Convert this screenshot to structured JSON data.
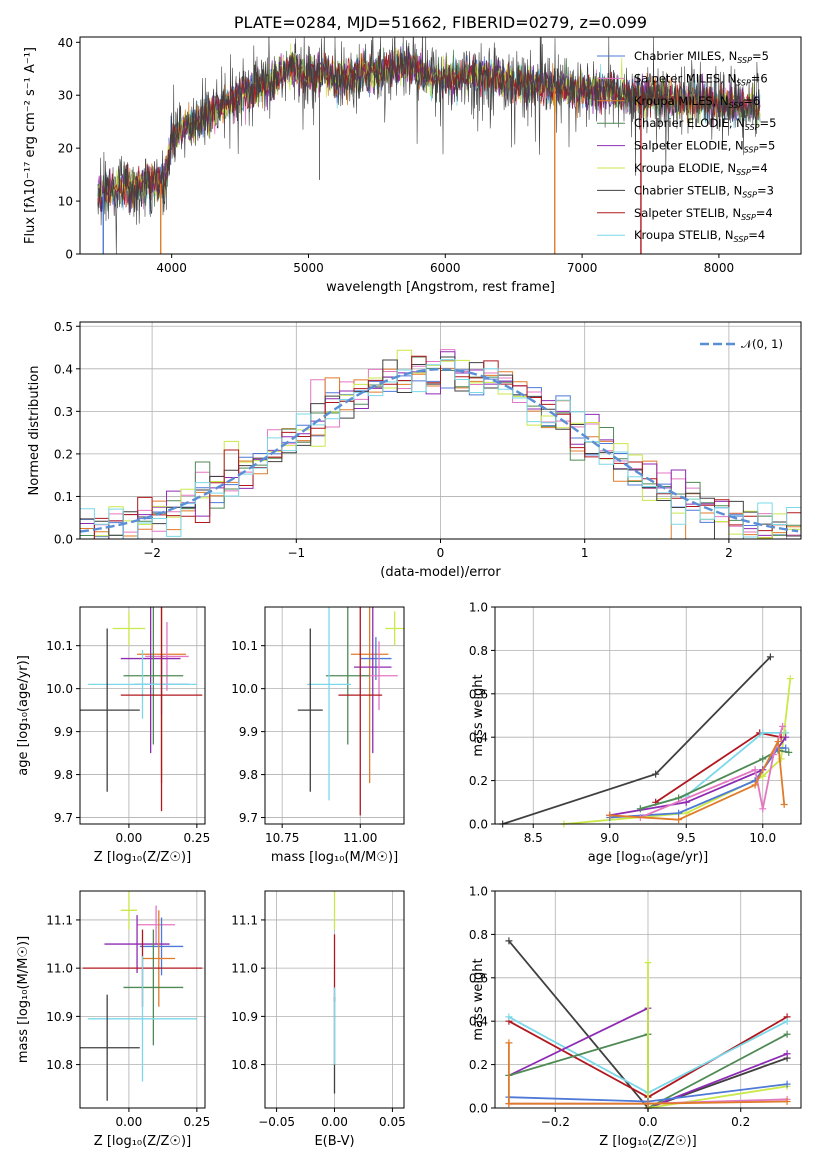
{
  "colors": {
    "chabrier_miles": "#4e79d6",
    "salpeter_miles": "#e377c2",
    "kroupa_miles": "#e07b2a",
    "chabrier_elodie": "#4f8a55",
    "salpeter_elodie": "#8e2bb3",
    "kroupa_elodie": "#c9e84a",
    "chabrier_stelib": "#404040",
    "salpeter_stelib": "#b0181f",
    "kroupa_stelib": "#7ad8e8",
    "normal": "#5a8fd6"
  },
  "chart_data": [
    {
      "id": "spectrum",
      "type": "line",
      "title": "PLATE=0284, MJD=51662, FIBERID=0279, z=0.099",
      "xlabel": "wavelength [Angstrom, rest frame]",
      "ylabel": "Flux [fλ10⁻¹⁷ erg cm⁻² s⁻¹ A⁻¹]",
      "xlim": [
        3330,
        8600
      ],
      "ylim": [
        0,
        41
      ],
      "xticks": [
        4000,
        5000,
        6000,
        7000,
        8000
      ],
      "yticks": [
        0,
        10,
        20,
        30,
        40
      ],
      "legend_position": "right",
      "legend": [
        {
          "key": "chabrier_miles",
          "label": "Chabrier MILES, N",
          "sub": "SSP",
          "suffix": "=5"
        },
        {
          "key": "salpeter_miles",
          "label": "Salpeter MILES, N",
          "sub": "SSP",
          "suffix": "=6"
        },
        {
          "key": "kroupa_miles",
          "label": "Kroupa MILES, N",
          "sub": "SSP",
          "suffix": "=6"
        },
        {
          "key": "chabrier_elodie",
          "label": "Chabrier ELODIE, N",
          "sub": "SSP",
          "suffix": "=5"
        },
        {
          "key": "salpeter_elodie",
          "label": "Salpeter ELODIE, N",
          "sub": "SSP",
          "suffix": "=5"
        },
        {
          "key": "kroupa_elodie",
          "label": "Kroupa ELODIE, N",
          "sub": "SSP",
          "suffix": "=4"
        },
        {
          "key": "chabrier_stelib",
          "label": "Chabrier STELIB, N",
          "sub": "SSP",
          "suffix": "=3"
        },
        {
          "key": "salpeter_stelib",
          "label": "Salpeter STELIB, N",
          "sub": "SSP",
          "suffix": "=4"
        },
        {
          "key": "kroupa_stelib",
          "label": "Kroupa STELIB, N",
          "sub": "SSP",
          "suffix": "=4"
        }
      ],
      "continuum": [
        [
          3450,
          11
        ],
        [
          3550,
          12
        ],
        [
          3650,
          12.5
        ],
        [
          3750,
          13
        ],
        [
          3850,
          14
        ],
        [
          3950,
          13
        ],
        [
          4000,
          22
        ],
        [
          4100,
          24
        ],
        [
          4200,
          25
        ],
        [
          4300,
          27
        ],
        [
          4400,
          28
        ],
        [
          4500,
          30
        ],
        [
          4600,
          31
        ],
        [
          4700,
          32
        ],
        [
          4800,
          34
        ],
        [
          4900,
          35
        ],
        [
          5000,
          33.5
        ],
        [
          5100,
          34.5
        ],
        [
          5200,
          33
        ],
        [
          5300,
          33.5
        ],
        [
          5400,
          34.5
        ],
        [
          5500,
          34
        ],
        [
          5600,
          35
        ],
        [
          5700,
          35.5
        ],
        [
          5800,
          35
        ],
        [
          5900,
          33.5
        ],
        [
          6000,
          33
        ],
        [
          6200,
          34
        ],
        [
          6400,
          33
        ],
        [
          6600,
          32
        ],
        [
          6800,
          31.5
        ],
        [
          7000,
          31
        ],
        [
          7200,
          30.5
        ],
        [
          7400,
          30
        ],
        [
          7600,
          29.5
        ],
        [
          7800,
          29
        ],
        [
          8000,
          28.5
        ],
        [
          8300,
          28
        ]
      ],
      "drops": [
        {
          "key": "chabrier_miles",
          "x": 3500
        },
        {
          "key": "kroupa_miles",
          "x": 3920
        },
        {
          "key": "kroupa_miles",
          "x": 6800
        },
        {
          "key": "salpeter_stelib",
          "x": 7430
        }
      ]
    },
    {
      "id": "residuals",
      "type": "step",
      "xlabel": "(data-model)/error",
      "ylabel": "Normed distribution",
      "xlim": [
        -2.5,
        2.5
      ],
      "ylim": [
        0,
        0.51
      ],
      "xticks": [
        -2,
        -1,
        0,
        1,
        2
      ],
      "yticks": [
        0.0,
        0.1,
        0.2,
        0.3,
        0.4,
        0.5
      ],
      "grid": true,
      "bin_width": 0.1,
      "legend_position": "top-right",
      "legend": [
        {
          "key": "normal",
          "label": "𝒩(0, 1)"
        }
      ],
      "normal": {
        "mu": 0,
        "sigma": 1,
        "style": "dashed"
      },
      "series_keys": [
        "chabrier_miles",
        "salpeter_miles",
        "kroupa_miles",
        "chabrier_elodie",
        "salpeter_elodie",
        "kroupa_elodie",
        "chabrier_stelib",
        "salpeter_stelib",
        "kroupa_stelib"
      ]
    },
    {
      "id": "age_vs_Z",
      "type": "errorbar",
      "xlabel": "Z [log₁₀(Z/Z☉)]",
      "ylabel": "age  [log₁₀(age/yr)]",
      "xlim": [
        -0.18,
        0.28
      ],
      "ylim": [
        9.685,
        10.19
      ],
      "xticks": [
        0.0,
        0.25
      ],
      "yticks": [
        9.7,
        9.8,
        9.9,
        10.0,
        10.1
      ],
      "grid": true,
      "points": [
        {
          "key": "kroupa_elodie",
          "x": 0.0,
          "xerr": 0.06,
          "y": 10.14,
          "yerr": 0.04
        },
        {
          "key": "kroupa_miles",
          "x": 0.12,
          "xerr": 0.09,
          "y": 10.08,
          "yerr": 0.3
        },
        {
          "key": "salpeter_miles",
          "x": 0.14,
          "xerr": 0.08,
          "y": 10.075,
          "yerr": 0.08
        },
        {
          "key": "salpeter_elodie",
          "x": 0.08,
          "xerr": 0.11,
          "y": 10.07,
          "yerr": 0.22
        },
        {
          "key": "chabrier_elodie",
          "x": 0.09,
          "xerr": 0.11,
          "y": 10.03,
          "yerr": 0.16
        },
        {
          "key": "chabrier_miles",
          "x": 0.12,
          "xerr": 0.1,
          "y": 10.01,
          "yerr": 0.07
        },
        {
          "key": "kroupa_stelib",
          "x": 0.05,
          "xerr": 0.2,
          "y": 10.01,
          "yerr": 0.08
        },
        {
          "key": "salpeter_stelib",
          "x": 0.12,
          "xerr": 0.15,
          "y": 9.985,
          "yerr": 0.27
        },
        {
          "key": "chabrier_stelib",
          "x": -0.08,
          "xerr": 0.12,
          "y": 9.95,
          "yerr": 0.19
        }
      ]
    },
    {
      "id": "age_vs_mass",
      "type": "errorbar",
      "xlabel": "mass [log₁₀(M/M☉)]",
      "ylabel": "",
      "xlim": [
        10.695,
        11.14
      ],
      "ylim": [
        9.685,
        10.19
      ],
      "xticks": [
        10.75,
        11.0
      ],
      "yticks": [
        9.7,
        9.8,
        9.9,
        10.0,
        10.1
      ],
      "grid": true,
      "points": [
        {
          "key": "kroupa_elodie",
          "x": 11.11,
          "xerr": 0.03,
          "y": 10.14,
          "yerr": 0.04
        },
        {
          "key": "kroupa_miles",
          "x": 11.03,
          "xerr": 0.06,
          "y": 10.08,
          "yerr": 0.3
        },
        {
          "key": "chabrier_miles",
          "x": 11.05,
          "xerr": 0.05,
          "y": 10.07,
          "yerr": 0.05
        },
        {
          "key": "salpeter_elodie",
          "x": 11.04,
          "xerr": 0.06,
          "y": 10.05,
          "yerr": 0.2
        },
        {
          "key": "salpeter_miles",
          "x": 11.06,
          "xerr": 0.06,
          "y": 10.03,
          "yerr": 0.08
        },
        {
          "key": "chabrier_elodie",
          "x": 10.96,
          "xerr": 0.07,
          "y": 10.03,
          "yerr": 0.16
        },
        {
          "key": "kroupa_stelib",
          "x": 10.9,
          "xerr": 0.07,
          "y": 10.01,
          "yerr": 0.27
        },
        {
          "key": "salpeter_stelib",
          "x": 11.0,
          "xerr": 0.07,
          "y": 9.985,
          "yerr": 0.28
        },
        {
          "key": "chabrier_stelib",
          "x": 10.84,
          "xerr": 0.04,
          "y": 9.95,
          "yerr": 0.19
        }
      ]
    },
    {
      "id": "sfh_age",
      "type": "line",
      "xlabel": "age  [log₁₀(age/yr)]",
      "ylabel": "mass weight",
      "xlim": [
        8.25,
        10.25
      ],
      "ylim": [
        0,
        1
      ],
      "xticks": [
        8.5,
        9.0,
        9.5,
        10.0
      ],
      "yticks": [
        0.0,
        0.2,
        0.4,
        0.6,
        0.8,
        1.0
      ],
      "grid": true,
      "series": [
        {
          "key": "chabrier_stelib",
          "points": [
            [
              8.3,
              0.0
            ],
            [
              9.3,
              0.23
            ],
            [
              10.05,
              0.77
            ]
          ]
        },
        {
          "key": "salpeter_stelib",
          "points": [
            [
              9.3,
              0.1
            ],
            [
              9.98,
              0.42
            ],
            [
              10.12,
              0.4
            ]
          ]
        },
        {
          "key": "kroupa_stelib",
          "points": [
            [
              9.2,
              0.07
            ],
            [
              9.5,
              0.13
            ],
            [
              10.0,
              0.42
            ],
            [
              10.15,
              0.42
            ]
          ]
        },
        {
          "key": "kroupa_elodie",
          "points": [
            [
              8.7,
              0.0
            ],
            [
              9.5,
              0.05
            ],
            [
              10.0,
              0.22
            ],
            [
              10.12,
              0.3
            ],
            [
              10.18,
              0.67
            ]
          ]
        },
        {
          "key": "salpeter_elodie",
          "points": [
            [
              9.0,
              0.04
            ],
            [
              9.5,
              0.1
            ],
            [
              10.0,
              0.25
            ],
            [
              10.15,
              0.4
            ]
          ]
        },
        {
          "key": "chabrier_elodie",
          "points": [
            [
              9.2,
              0.07
            ],
            [
              9.45,
              0.12
            ],
            [
              10.0,
              0.3
            ],
            [
              10.1,
              0.34
            ],
            [
              10.17,
              0.33
            ]
          ]
        },
        {
          "key": "chabrier_miles",
          "points": [
            [
              9.0,
              0.03
            ],
            [
              9.45,
              0.05
            ],
            [
              9.95,
              0.2
            ],
            [
              10.1,
              0.35
            ],
            [
              10.15,
              0.35
            ]
          ]
        },
        {
          "key": "salpeter_miles",
          "points": [
            [
              9.2,
              0.03
            ],
            [
              9.95,
              0.25
            ],
            [
              10.0,
              0.07
            ],
            [
              10.07,
              0.32
            ],
            [
              10.13,
              0.45
            ]
          ]
        },
        {
          "key": "kroupa_miles",
          "points": [
            [
              9.0,
              0.04
            ],
            [
              9.45,
              0.02
            ],
            [
              9.95,
              0.18
            ],
            [
              10.1,
              0.38
            ],
            [
              10.14,
              0.09
            ]
          ]
        }
      ]
    },
    {
      "id": "mass_vs_Z",
      "type": "errorbar",
      "xlabel": "Z [log₁₀(Z/Z☉)]",
      "ylabel": "mass [log₁₀(M/M☉)]",
      "xlim": [
        -0.18,
        0.28
      ],
      "ylim": [
        10.71,
        11.16
      ],
      "xticks": [
        0.0,
        0.25
      ],
      "yticks": [
        10.8,
        10.9,
        11.0,
        11.1
      ],
      "grid": true,
      "points": [
        {
          "key": "kroupa_elodie",
          "x": 0.0,
          "xerr": 0.03,
          "y": 11.12,
          "yerr": 0.04
        },
        {
          "key": "salpeter_miles",
          "x": 0.1,
          "xerr": 0.07,
          "y": 11.09,
          "yerr": 0.04
        },
        {
          "key": "chabrier_miles",
          "x": 0.12,
          "xerr": 0.08,
          "y": 11.045,
          "yerr": 0.06
        },
        {
          "key": "salpeter_elodie",
          "x": 0.03,
          "xerr": 0.12,
          "y": 11.05,
          "yerr": 0.06
        },
        {
          "key": "kroupa_miles",
          "x": 0.11,
          "xerr": 0.06,
          "y": 11.02,
          "yerr": 0.1
        },
        {
          "key": "salpeter_stelib",
          "x": 0.05,
          "xerr": 0.22,
          "y": 11.0,
          "yerr": 0.08
        },
        {
          "key": "chabrier_elodie",
          "x": 0.09,
          "xerr": 0.11,
          "y": 10.96,
          "yerr": 0.12
        },
        {
          "key": "kroupa_stelib",
          "x": 0.05,
          "xerr": 0.2,
          "y": 10.895,
          "yerr": 0.13
        },
        {
          "key": "chabrier_stelib",
          "x": -0.08,
          "xerr": 0.12,
          "y": 10.835,
          "yerr": 0.11
        }
      ]
    },
    {
      "id": "mass_vs_ebv",
      "type": "errorbar",
      "xlabel": "E(B-V)",
      "ylabel": "",
      "xlim": [
        -0.06,
        0.06
      ],
      "ylim": [
        10.71,
        11.16
      ],
      "xticks": [
        -0.05,
        0.0,
        0.05
      ],
      "yticks": [
        10.8,
        10.9,
        11.0,
        11.1
      ],
      "grid": true,
      "points": [
        {
          "key": "kroupa_elodie",
          "x": 0.0,
          "xerr": 0.0,
          "y": 11.12,
          "yerr": 0.04
        },
        {
          "key": "salpeter_stelib",
          "x": 0.0,
          "xerr": 0.0,
          "y": 11.0,
          "yerr": 0.07
        },
        {
          "key": "chabrier_stelib",
          "x": 0.0,
          "xerr": 0.0,
          "y": 10.84,
          "yerr": 0.1
        },
        {
          "key": "kroupa_stelib",
          "x": 0.0,
          "xerr": 0.0,
          "y": 10.88,
          "yerr": 0.08
        }
      ]
    },
    {
      "id": "sfh_Z",
      "type": "line",
      "xlabel": "Z [log₁₀(Z/Z☉)]",
      "ylabel": "mass weight",
      "xlim": [
        -0.33,
        0.33
      ],
      "ylim": [
        0,
        1
      ],
      "xticks": [
        -0.2,
        0.0,
        0.2
      ],
      "yticks": [
        0.0,
        0.2,
        0.4,
        0.6,
        0.8,
        1.0
      ],
      "grid": true,
      "series": [
        {
          "key": "chabrier_stelib",
          "points": [
            [
              -0.3,
              0.77
            ],
            [
              0.0,
              0.0
            ],
            [
              0.3,
              0.23
            ]
          ]
        },
        {
          "key": "salpeter_stelib",
          "points": [
            [
              -0.3,
              0.4
            ],
            [
              0.0,
              0.05
            ],
            [
              0.3,
              0.42
            ]
          ]
        },
        {
          "key": "kroupa_stelib",
          "points": [
            [
              -0.3,
              0.42
            ],
            [
              0.0,
              0.07
            ],
            [
              0.3,
              0.4
            ]
          ]
        },
        {
          "key": "salpeter_elodie",
          "points": [
            [
              -0.3,
              0.15
            ],
            [
              0.0,
              0.46
            ],
            [
              0.0,
              0.0
            ],
            [
              0.3,
              0.25
            ]
          ]
        },
        {
          "key": "chabrier_elodie",
          "points": [
            [
              -0.3,
              0.15
            ],
            [
              0.0,
              0.34
            ],
            [
              0.0,
              0.0
            ],
            [
              0.3,
              0.34
            ]
          ]
        },
        {
          "key": "kroupa_elodie",
          "points": [
            [
              0.0,
              0.67
            ],
            [
              0.0,
              0.0
            ],
            [
              0.3,
              0.1
            ]
          ]
        },
        {
          "key": "chabrier_miles",
          "points": [
            [
              -0.3,
              0.05
            ],
            [
              0.0,
              0.03
            ],
            [
              0.3,
              0.11
            ]
          ]
        },
        {
          "key": "salpeter_miles",
          "points": [
            [
              -0.3,
              0.02
            ],
            [
              0.0,
              0.02
            ],
            [
              0.3,
              0.04
            ]
          ]
        },
        {
          "key": "kroupa_miles",
          "points": [
            [
              -0.3,
              0.3
            ],
            [
              -0.3,
              0.02
            ],
            [
              0.0,
              0.02
            ],
            [
              0.3,
              0.03
            ]
          ]
        }
      ]
    }
  ]
}
